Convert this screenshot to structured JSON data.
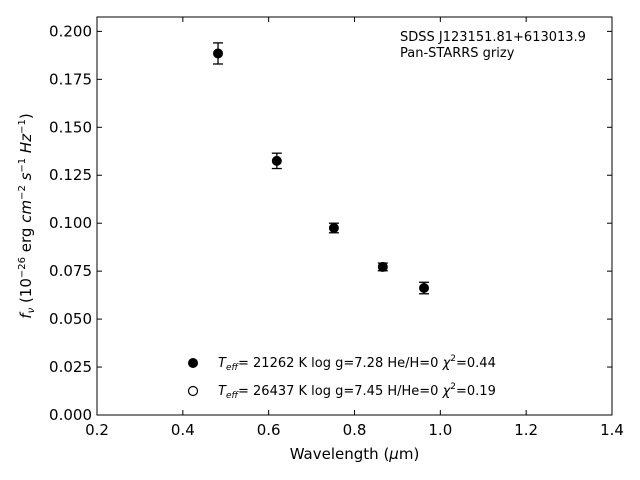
{
  "chart_data": {
    "type": "scatter",
    "xlabel_main": "Wavelength (",
    "xlabel_mu": "μ",
    "xlabel_tail": "m)",
    "ylabel": {
      "f": "f",
      "nu": "ν",
      "open": " (10",
      "exp1": "−26",
      "erg": " erg ",
      "cm": "cm",
      "exp2": "−2",
      "s": " s",
      "exp3": "−1",
      "hz": " Hz",
      "exp4": "−1",
      "close": ")"
    },
    "xlim": [
      0.2,
      1.4
    ],
    "ylim": [
      0.0,
      0.2075
    ],
    "xticks": [
      "0.2",
      "0.4",
      "0.6",
      "0.8",
      "1.0",
      "1.2",
      "1.4"
    ],
    "yticks": [
      "0.000",
      "0.025",
      "0.050",
      "0.075",
      "0.100",
      "0.125",
      "0.150",
      "0.175",
      "0.200"
    ],
    "grid": false,
    "annotation": [
      "SDSS J123151.81+613013.9",
      "Pan-STARRS grizy"
    ],
    "observed": {
      "marker": "filled-circle",
      "color": "#000000",
      "points": [
        {
          "x": 0.482,
          "y": 0.1885,
          "err": 0.0055
        },
        {
          "x": 0.619,
          "y": 0.1325,
          "err": 0.004
        },
        {
          "x": 0.752,
          "y": 0.0975,
          "err": 0.0025
        },
        {
          "x": 0.866,
          "y": 0.0772,
          "err": 0.002
        },
        {
          "x": 0.962,
          "y": 0.0662,
          "err": 0.003
        }
      ]
    },
    "legend": [
      {
        "marker": "filled",
        "teff_T": "T",
        "teff_sub": "eff",
        "rest_a": "= 21262 K  log g=7.28  He/H=0  ",
        "chi": "χ",
        "chi_sup": "2",
        "rest_b": "=0.44"
      },
      {
        "marker": "open",
        "teff_T": "T",
        "teff_sub": "eff",
        "rest_a": "= 26437 K  log g=7.45  H/He=0  ",
        "chi": "χ",
        "chi_sup": "2",
        "rest_b": "=0.19"
      }
    ]
  }
}
